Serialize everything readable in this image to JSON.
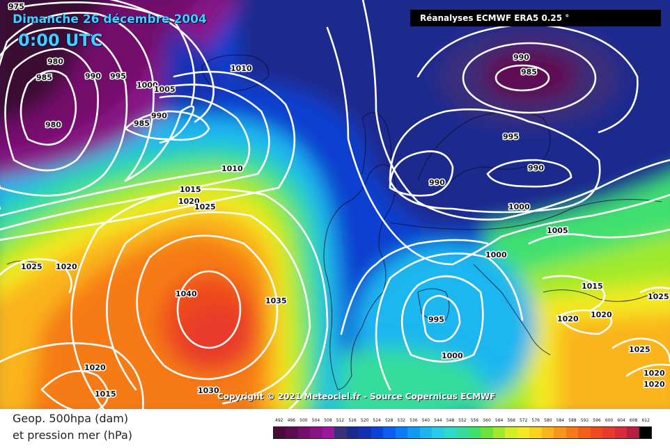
{
  "map": {
    "title_date": "Dimanche 26 décembre 2004",
    "title_time": "0:00 UTC",
    "source": "Réanalyses ECMWF ERA5 0.25 °",
    "copyright": "Copyright © 2021 Meteociel.fr - Source Copernicus ECMWF",
    "isobar_labels": [
      {
        "text": "975"
      },
      {
        "text": "980"
      },
      {
        "text": "985"
      },
      {
        "text": "990"
      },
      {
        "text": "995"
      },
      {
        "text": "1000"
      },
      {
        "text": "1005"
      },
      {
        "text": "990"
      },
      {
        "text": "985"
      },
      {
        "text": "980"
      },
      {
        "text": "1010"
      },
      {
        "text": "1010"
      },
      {
        "text": "1015"
      },
      {
        "text": "1020"
      },
      {
        "text": "1025"
      },
      {
        "text": "1025"
      },
      {
        "text": "1020"
      },
      {
        "text": "1040"
      },
      {
        "text": "1035"
      },
      {
        "text": "1020"
      },
      {
        "text": "1015"
      },
      {
        "text": "1030"
      },
      {
        "text": "990"
      },
      {
        "text": "985"
      },
      {
        "text": "995"
      },
      {
        "text": "990"
      },
      {
        "text": "990"
      },
      {
        "text": "1000"
      },
      {
        "text": "1005"
      },
      {
        "text": "1000"
      },
      {
        "text": "995"
      },
      {
        "text": "1000"
      },
      {
        "text": "1015"
      },
      {
        "text": "1025"
      },
      {
        "text": "1020"
      },
      {
        "text": "1020"
      },
      {
        "text": "1025"
      },
      {
        "text": "1020"
      },
      {
        "text": "1020"
      }
    ]
  },
  "legend": {
    "line1": "Geop. 500hpa (dam)",
    "line2": "et pression mer (hPa)",
    "scale": [
      {
        "value": "492",
        "color": "#4a0a3a"
      },
      {
        "value": "496",
        "color": "#5e0c52"
      },
      {
        "value": "500",
        "color": "#730f6b"
      },
      {
        "value": "504",
        "color": "#881286"
      },
      {
        "value": "508",
        "color": "#9c16a0"
      },
      {
        "value": "512",
        "color": "#3a2f7a"
      },
      {
        "value": "516",
        "color": "#1b2a8e"
      },
      {
        "value": "520",
        "color": "#1230b4"
      },
      {
        "value": "524",
        "color": "#0a44d6"
      },
      {
        "value": "528",
        "color": "#0a5ef0"
      },
      {
        "value": "532",
        "color": "#0b7cf4"
      },
      {
        "value": "536",
        "color": "#119af2"
      },
      {
        "value": "540",
        "color": "#1bb6f0"
      },
      {
        "value": "544",
        "color": "#27cde8"
      },
      {
        "value": "548",
        "color": "#2fd8c8"
      },
      {
        "value": "552",
        "color": "#36dc9c"
      },
      {
        "value": "556",
        "color": "#3fe070"
      },
      {
        "value": "560",
        "color": "#6ae43c"
      },
      {
        "value": "564",
        "color": "#a0ea2c"
      },
      {
        "value": "568",
        "color": "#d4ee26"
      },
      {
        "value": "572",
        "color": "#f4ea24"
      },
      {
        "value": "576",
        "color": "#fad21f"
      },
      {
        "value": "580",
        "color": "#fab41c"
      },
      {
        "value": "584",
        "color": "#f8961a"
      },
      {
        "value": "588",
        "color": "#f67a18"
      },
      {
        "value": "592",
        "color": "#f26018"
      },
      {
        "value": "596",
        "color": "#ee4a1e"
      },
      {
        "value": "600",
        "color": "#e83a2c"
      },
      {
        "value": "604",
        "color": "#d82c3c"
      },
      {
        "value": "608",
        "color": "#b81e3e"
      },
      {
        "value": "612",
        "color": "#000000"
      }
    ]
  }
}
